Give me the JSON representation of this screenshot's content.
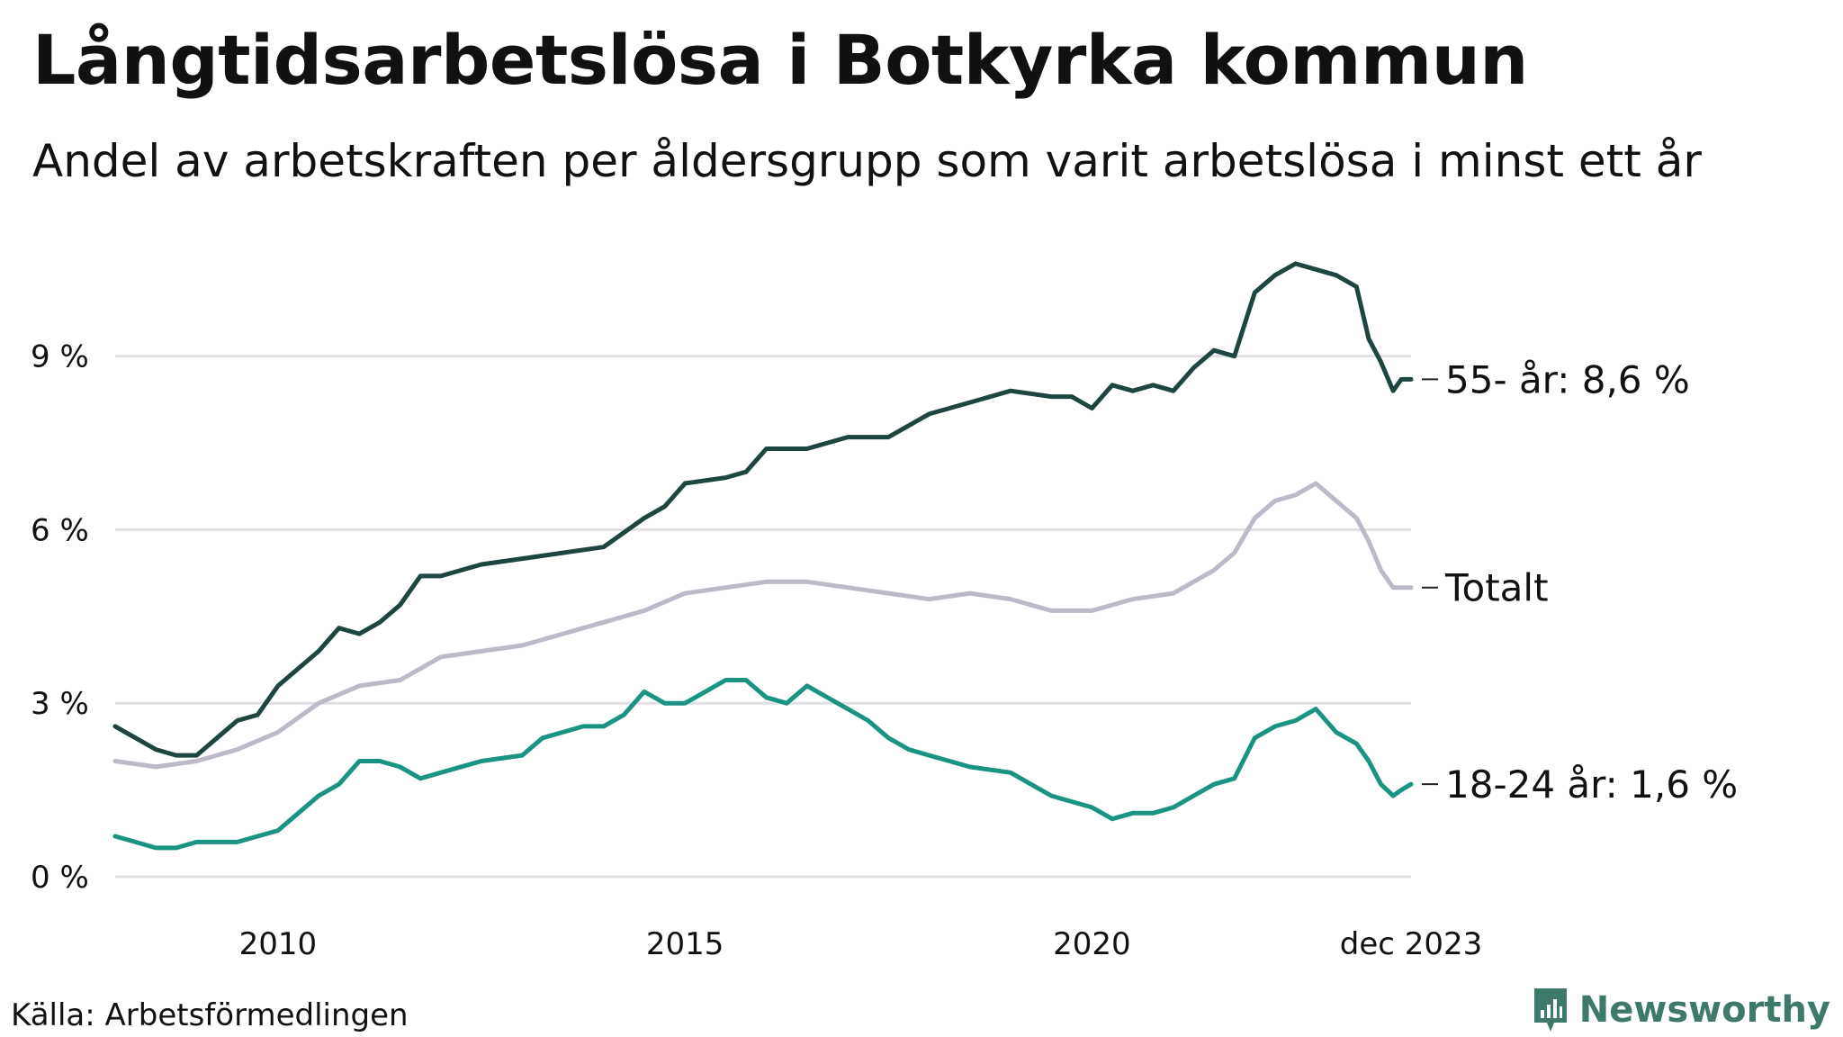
{
  "title": "Långtidsarbetslösa i Botkyrka kommun",
  "subtitle": "Andel av arbetskraften per åldersgrupp som varit arbetslösa i minst ett år",
  "source": "Källa: Arbetsförmedlingen",
  "brand": "Newsworthy",
  "colors": {
    "grid": "#e1e1e6",
    "s55": "#1f4540",
    "total": "#bcbac9",
    "s1824": "#1a9482",
    "brand": "#3d7a6b"
  },
  "chart_data": {
    "type": "line",
    "title": "Långtidsarbetslösa i Botkyrka kommun",
    "ylabel": "",
    "xlabel": "",
    "ylim": [
      0,
      10.8
    ],
    "xlim": [
      2008.0,
      2023.92
    ],
    "y_ticks": [
      {
        "value": 0,
        "label": "0 %"
      },
      {
        "value": 3,
        "label": "3 %"
      },
      {
        "value": 6,
        "label": "6 %"
      },
      {
        "value": 9,
        "label": "9 %"
      }
    ],
    "x_ticks": [
      {
        "value": 2010,
        "label": "2010"
      },
      {
        "value": 2015,
        "label": "2015"
      },
      {
        "value": 2020,
        "label": "2020"
      },
      {
        "value": 2023.92,
        "label": "dec 2023"
      }
    ],
    "series": [
      {
        "name": "55- år",
        "end_label": "55- år: 8,6 %",
        "color_key": "s55",
        "points": [
          [
            2008.0,
            2.6
          ],
          [
            2008.5,
            2.2
          ],
          [
            2008.75,
            2.1
          ],
          [
            2009.0,
            2.1
          ],
          [
            2009.25,
            2.4
          ],
          [
            2009.5,
            2.7
          ],
          [
            2009.75,
            2.8
          ],
          [
            2010.0,
            3.3
          ],
          [
            2010.5,
            3.9
          ],
          [
            2010.75,
            4.3
          ],
          [
            2011.0,
            4.2
          ],
          [
            2011.25,
            4.4
          ],
          [
            2011.5,
            4.7
          ],
          [
            2011.75,
            5.2
          ],
          [
            2012.0,
            5.2
          ],
          [
            2012.5,
            5.4
          ],
          [
            2013.0,
            5.5
          ],
          [
            2013.5,
            5.6
          ],
          [
            2014.0,
            5.7
          ],
          [
            2014.5,
            6.2
          ],
          [
            2014.75,
            6.4
          ],
          [
            2015.0,
            6.8
          ],
          [
            2015.5,
            6.9
          ],
          [
            2015.75,
            7.0
          ],
          [
            2016.0,
            7.4
          ],
          [
            2016.5,
            7.4
          ],
          [
            2017.0,
            7.6
          ],
          [
            2017.5,
            7.6
          ],
          [
            2018.0,
            8.0
          ],
          [
            2018.5,
            8.2
          ],
          [
            2019.0,
            8.4
          ],
          [
            2019.5,
            8.3
          ],
          [
            2019.75,
            8.3
          ],
          [
            2020.0,
            8.1
          ],
          [
            2020.25,
            8.5
          ],
          [
            2020.5,
            8.4
          ],
          [
            2020.75,
            8.5
          ],
          [
            2021.0,
            8.4
          ],
          [
            2021.25,
            8.8
          ],
          [
            2021.5,
            9.1
          ],
          [
            2021.75,
            9.0
          ],
          [
            2022.0,
            10.1
          ],
          [
            2022.25,
            10.4
          ],
          [
            2022.5,
            10.6
          ],
          [
            2022.75,
            10.5
          ],
          [
            2023.0,
            10.4
          ],
          [
            2023.25,
            10.2
          ],
          [
            2023.4,
            9.3
          ],
          [
            2023.55,
            8.9
          ],
          [
            2023.7,
            8.4
          ],
          [
            2023.8,
            8.6
          ],
          [
            2023.92,
            8.6
          ]
        ]
      },
      {
        "name": "Totalt",
        "end_label": "Totalt",
        "color_key": "total",
        "points": [
          [
            2008.0,
            2.0
          ],
          [
            2008.5,
            1.9
          ],
          [
            2009.0,
            2.0
          ],
          [
            2009.5,
            2.2
          ],
          [
            2010.0,
            2.5
          ],
          [
            2010.5,
            3.0
          ],
          [
            2011.0,
            3.3
          ],
          [
            2011.5,
            3.4
          ],
          [
            2011.75,
            3.6
          ],
          [
            2012.0,
            3.8
          ],
          [
            2012.5,
            3.9
          ],
          [
            2013.0,
            4.0
          ],
          [
            2013.5,
            4.2
          ],
          [
            2014.0,
            4.4
          ],
          [
            2014.5,
            4.6
          ],
          [
            2015.0,
            4.9
          ],
          [
            2015.5,
            5.0
          ],
          [
            2016.0,
            5.1
          ],
          [
            2016.5,
            5.1
          ],
          [
            2017.0,
            5.0
          ],
          [
            2017.5,
            4.9
          ],
          [
            2018.0,
            4.8
          ],
          [
            2018.5,
            4.9
          ],
          [
            2019.0,
            4.8
          ],
          [
            2019.5,
            4.6
          ],
          [
            2020.0,
            4.6
          ],
          [
            2020.5,
            4.8
          ],
          [
            2021.0,
            4.9
          ],
          [
            2021.5,
            5.3
          ],
          [
            2021.75,
            5.6
          ],
          [
            2022.0,
            6.2
          ],
          [
            2022.25,
            6.5
          ],
          [
            2022.5,
            6.6
          ],
          [
            2022.75,
            6.8
          ],
          [
            2023.0,
            6.5
          ],
          [
            2023.25,
            6.2
          ],
          [
            2023.4,
            5.8
          ],
          [
            2023.55,
            5.3
          ],
          [
            2023.7,
            5.0
          ],
          [
            2023.8,
            5.0
          ],
          [
            2023.92,
            5.0
          ]
        ]
      },
      {
        "name": "18-24 år",
        "end_label": "18-24 år: 1,6 %",
        "color_key": "s1824",
        "points": [
          [
            2008.0,
            0.7
          ],
          [
            2008.25,
            0.6
          ],
          [
            2008.5,
            0.5
          ],
          [
            2008.75,
            0.5
          ],
          [
            2009.0,
            0.6
          ],
          [
            2009.5,
            0.6
          ],
          [
            2010.0,
            0.8
          ],
          [
            2010.25,
            1.1
          ],
          [
            2010.5,
            1.4
          ],
          [
            2010.75,
            1.6
          ],
          [
            2011.0,
            2.0
          ],
          [
            2011.25,
            2.0
          ],
          [
            2011.5,
            1.9
          ],
          [
            2011.75,
            1.7
          ],
          [
            2012.0,
            1.8
          ],
          [
            2012.5,
            2.0
          ],
          [
            2013.0,
            2.1
          ],
          [
            2013.25,
            2.4
          ],
          [
            2013.5,
            2.5
          ],
          [
            2013.75,
            2.6
          ],
          [
            2014.0,
            2.6
          ],
          [
            2014.25,
            2.8
          ],
          [
            2014.5,
            3.2
          ],
          [
            2014.75,
            3.0
          ],
          [
            2015.0,
            3.0
          ],
          [
            2015.25,
            3.2
          ],
          [
            2015.5,
            3.4
          ],
          [
            2015.75,
            3.4
          ],
          [
            2016.0,
            3.1
          ],
          [
            2016.25,
            3.0
          ],
          [
            2016.5,
            3.3
          ],
          [
            2016.75,
            3.1
          ],
          [
            2017.0,
            2.9
          ],
          [
            2017.25,
            2.7
          ],
          [
            2017.5,
            2.4
          ],
          [
            2017.75,
            2.2
          ],
          [
            2018.0,
            2.1
          ],
          [
            2018.5,
            1.9
          ],
          [
            2019.0,
            1.8
          ],
          [
            2019.25,
            1.6
          ],
          [
            2019.5,
            1.4
          ],
          [
            2019.75,
            1.3
          ],
          [
            2020.0,
            1.2
          ],
          [
            2020.25,
            1.0
          ],
          [
            2020.5,
            1.1
          ],
          [
            2020.75,
            1.1
          ],
          [
            2021.0,
            1.2
          ],
          [
            2021.25,
            1.4
          ],
          [
            2021.5,
            1.6
          ],
          [
            2021.75,
            1.7
          ],
          [
            2022.0,
            2.4
          ],
          [
            2022.25,
            2.6
          ],
          [
            2022.5,
            2.7
          ],
          [
            2022.75,
            2.9
          ],
          [
            2023.0,
            2.5
          ],
          [
            2023.25,
            2.3
          ],
          [
            2023.4,
            2.0
          ],
          [
            2023.55,
            1.6
          ],
          [
            2023.7,
            1.4
          ],
          [
            2023.8,
            1.5
          ],
          [
            2023.92,
            1.6
          ]
        ]
      }
    ]
  }
}
